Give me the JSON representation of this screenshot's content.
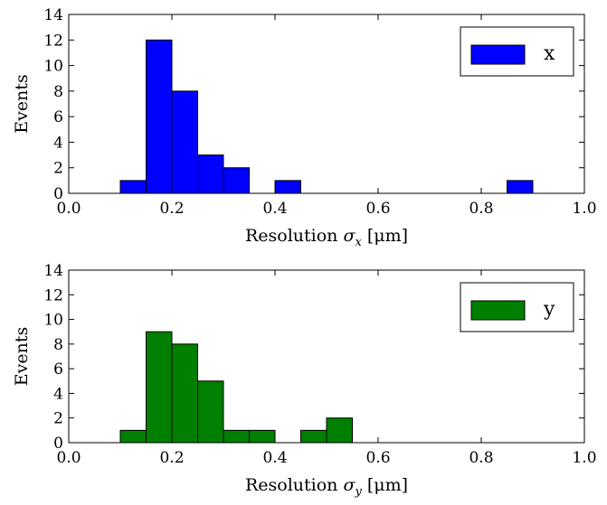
{
  "chart_data": [
    {
      "type": "bar",
      "ylabel": "Events",
      "xlabel_prefix": "Resolution ",
      "xlabel_symbol": "σ",
      "xlabel_subscript": "x",
      "xlabel_unit": " [μm]",
      "xlim": [
        0.0,
        1.0
      ],
      "ylim": [
        0,
        14
      ],
      "xticks": [
        "0.0",
        "0.2",
        "0.4",
        "0.6",
        "0.8",
        "1.0"
      ],
      "xtick_values": [
        0.0,
        0.2,
        0.4,
        0.6,
        0.8,
        1.0
      ],
      "yticks": [
        "0",
        "2",
        "4",
        "6",
        "8",
        "10",
        "12",
        "14"
      ],
      "ytick_values": [
        0,
        2,
        4,
        6,
        8,
        10,
        12,
        14
      ],
      "legend_position": "top-right",
      "grid": false,
      "series": [
        {
          "name": "x",
          "color": "#0000ff",
          "bins": [
            {
              "x0": 0.1,
              "x1": 0.15,
              "count": 1
            },
            {
              "x0": 0.15,
              "x1": 0.2,
              "count": 12
            },
            {
              "x0": 0.2,
              "x1": 0.25,
              "count": 8
            },
            {
              "x0": 0.25,
              "x1": 0.3,
              "count": 3
            },
            {
              "x0": 0.3,
              "x1": 0.35,
              "count": 2
            },
            {
              "x0": 0.4,
              "x1": 0.45,
              "count": 1
            },
            {
              "x0": 0.85,
              "x1": 0.9,
              "count": 1
            }
          ]
        }
      ]
    },
    {
      "type": "bar",
      "ylabel": "Events",
      "xlabel_prefix": "Resolution ",
      "xlabel_symbol": "σ",
      "xlabel_subscript": "y",
      "xlabel_unit": " [μm]",
      "xlim": [
        0.0,
        1.0
      ],
      "ylim": [
        0,
        14
      ],
      "xticks": [
        "0.0",
        "0.2",
        "0.4",
        "0.6",
        "0.8",
        "1.0"
      ],
      "xtick_values": [
        0.0,
        0.2,
        0.4,
        0.6,
        0.8,
        1.0
      ],
      "yticks": [
        "0",
        "2",
        "4",
        "6",
        "8",
        "10",
        "12",
        "14"
      ],
      "ytick_values": [
        0,
        2,
        4,
        6,
        8,
        10,
        12,
        14
      ],
      "legend_position": "top-right",
      "grid": false,
      "series": [
        {
          "name": "y",
          "color": "#007f00",
          "bins": [
            {
              "x0": 0.1,
              "x1": 0.15,
              "count": 1
            },
            {
              "x0": 0.15,
              "x1": 0.2,
              "count": 9
            },
            {
              "x0": 0.2,
              "x1": 0.25,
              "count": 8
            },
            {
              "x0": 0.25,
              "x1": 0.3,
              "count": 5
            },
            {
              "x0": 0.3,
              "x1": 0.35,
              "count": 1
            },
            {
              "x0": 0.35,
              "x1": 0.4,
              "count": 1
            },
            {
              "x0": 0.45,
              "x1": 0.5,
              "count": 1
            },
            {
              "x0": 0.5,
              "x1": 0.55,
              "count": 2
            }
          ]
        }
      ]
    }
  ]
}
